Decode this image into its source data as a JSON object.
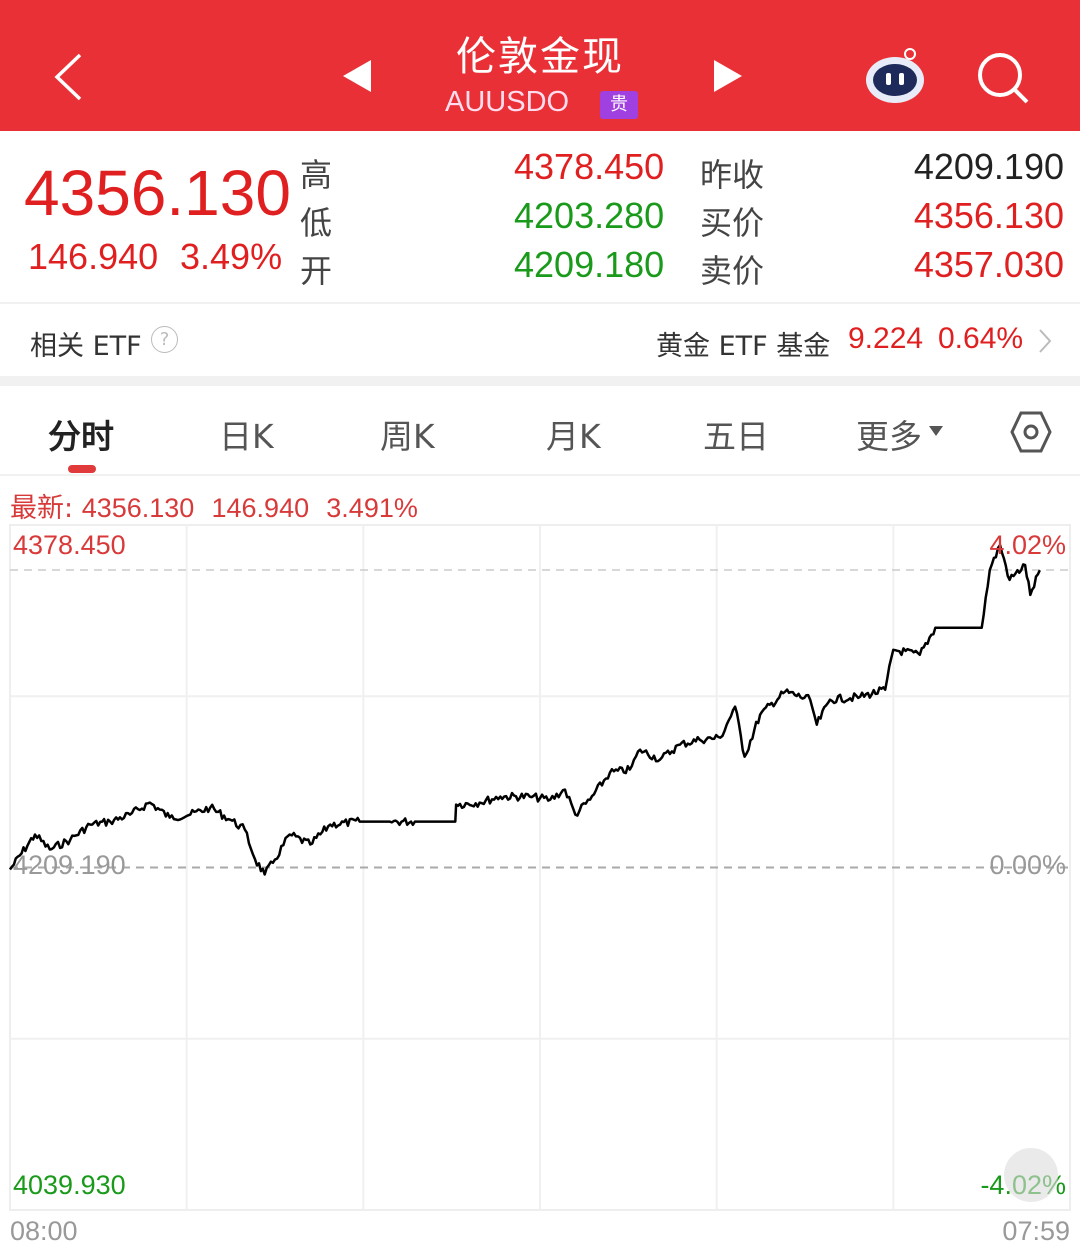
{
  "header": {
    "title": "伦敦金现",
    "symbol": "AUUSDO",
    "badge": "贵",
    "bg": "#ea3037"
  },
  "quote": {
    "price": "4356.130",
    "change": "146.940",
    "change_pct": "3.49%",
    "rows": [
      {
        "label": "高",
        "value": "4378.450",
        "label2": "昨收",
        "value2": "4209.190"
      },
      {
        "label": "低",
        "value": "4203.280",
        "label2": "买价",
        "value2": "4356.130"
      },
      {
        "label": "开",
        "value": "4209.180",
        "label2": "卖价",
        "value2": "4357.030"
      }
    ]
  },
  "etf": {
    "label": "相关 ETF",
    "fund_name": "黄金 ETF 基金",
    "fund_price": "9.224",
    "fund_pct": "0.64%"
  },
  "tabs": [
    {
      "label": "分时",
      "active": true
    },
    {
      "label": "日K"
    },
    {
      "label": "周K"
    },
    {
      "label": "月K"
    },
    {
      "label": "五日"
    },
    {
      "label": "更多"
    }
  ],
  "latest": {
    "label": "最新:",
    "price": "4356.130",
    "change": "146.940",
    "pct": "3.491%"
  },
  "chart_data": {
    "type": "line",
    "y_top_label": "4378.450",
    "y_mid_label": "4209.190",
    "y_bottom_label": "4039.930",
    "pct_top_label": "4.02%",
    "pct_mid_label": "0.00%",
    "pct_bottom_label": "-4.02%",
    "x_start_label": "08:00",
    "x_end_label": "07:59",
    "ylim": [
      4039.93,
      4378.45
    ],
    "reference_price": 4209.19,
    "line_color": "#000000",
    "series": [
      {
        "x": [
          "08:00",
          "08:34",
          "08:54",
          "09:22",
          "09:49",
          "10:16",
          "10:43",
          "11:10",
          "11:37",
          "12:05",
          "12:32",
          "12:59",
          "13:19",
          "13:33",
          "13:46",
          "14:00",
          "14:20",
          "14:48",
          "15:15",
          "15:55",
          "16:36",
          "17:10",
          "18:05",
          "18:06",
          "18:38",
          "19:06",
          "19:46",
          "20:14",
          "20:34",
          "20:48",
          "21:08",
          "21:35",
          "22:02",
          "22:16",
          "22:43",
          "23:10",
          "23:37",
          "00:05",
          "00:25",
          "00:38",
          "00:59",
          "01:33",
          "02:07",
          "02:16",
          "02:34",
          "03:15",
          "03:49",
          "04:00",
          "04:36",
          "04:57",
          "06:00",
          "06:11",
          "06:25",
          "06:38",
          "06:59",
          "07:06",
          "07:19"
        ],
        "y": [
          4208.2,
          4225.48,
          4218.07,
          4223.01,
          4230.41,
          4231.89,
          4235.35,
          4241.27,
          4233.87,
          4235.35,
          4238.8,
          4232.88,
          4227.94,
          4213.14,
          4205.74,
          4213.14,
          4225.48,
          4220.54,
          4230.41,
          4231.89,
          4231.89,
          4231.89,
          4231.89,
          4240.28,
          4241.27,
          4244.23,
          4244.23,
          4242.75,
          4247.68,
          4235.35,
          4242.75,
          4256.07,
          4257.55,
          4267.42,
          4262.49,
          4269.89,
          4272.36,
          4273.35,
          4288.65,
          4263.97,
          4284.7,
          4296.05,
          4292.1,
          4279.76,
          4292.1,
          4293.58,
          4297.03,
          4316.77,
          4314.31,
          4327.63,
          4327.63,
          4356.25,
          4368.59,
          4351.32,
          4358.72,
          4343.92,
          4356.13
        ]
      }
    ]
  }
}
